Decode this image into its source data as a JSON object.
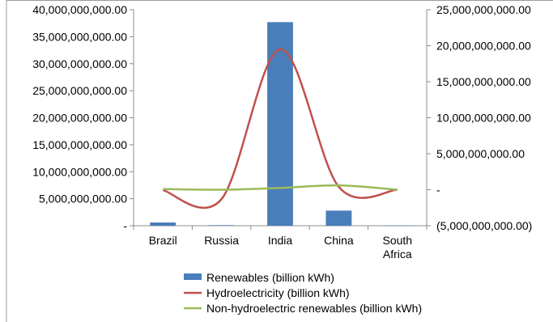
{
  "chart_data": {
    "type": "bar",
    "categories": [
      "Brazil",
      "Russia",
      "India",
      "China",
      "South Africa"
    ],
    "category_label_lines": [
      [
        "Brazil"
      ],
      [
        "Russia"
      ],
      [
        "India"
      ],
      [
        "China"
      ],
      [
        "South",
        "Africa"
      ]
    ],
    "series": [
      {
        "name": "Renewables (billion kWh)",
        "type": "bar",
        "axis": "left",
        "color": "#4a7ebb",
        "values": [
          600000000,
          100000000,
          37700000000,
          2800000000,
          50000000
        ]
      },
      {
        "name": "Hydroelectricity (billion kWh)",
        "type": "line",
        "axis": "right",
        "color": "#c0504d",
        "values": [
          -50000000,
          -1300000000,
          19500000000,
          400000000,
          0
        ]
      },
      {
        "name": "Non-hydroelectric renewables (billion kWh)",
        "type": "line",
        "axis": "right",
        "color": "#9bbb59",
        "values": [
          100000000,
          0,
          250000000,
          600000000,
          0
        ]
      }
    ],
    "left_axis": {
      "ylim": [
        0,
        40000000000
      ],
      "ticks": [
        {
          "value": 40000000000,
          "label": "40,000,000,000.00"
        },
        {
          "value": 35000000000,
          "label": "35,000,000,000.00"
        },
        {
          "value": 30000000000,
          "label": "30,000,000,000.00"
        },
        {
          "value": 25000000000,
          "label": "25,000,000,000.00"
        },
        {
          "value": 20000000000,
          "label": "20,000,000,000.00"
        },
        {
          "value": 15000000000,
          "label": "15,000,000,000.00"
        },
        {
          "value": 10000000000,
          "label": "10,000,000,000.00"
        },
        {
          "value": 5000000000,
          "label": "5,000,000,000.00"
        },
        {
          "value": 0,
          "label": "-"
        }
      ]
    },
    "right_axis": {
      "ylim": [
        -5000000000,
        25000000000
      ],
      "ticks": [
        {
          "value": 25000000000,
          "label": "25,000,000,000.00"
        },
        {
          "value": 20000000000,
          "label": "20,000,000,000.00"
        },
        {
          "value": 15000000000,
          "label": "15,000,000,000.00"
        },
        {
          "value": 10000000000,
          "label": "10,000,000,000.00"
        },
        {
          "value": 5000000000,
          "label": "5,000,000,000.00"
        },
        {
          "value": 0,
          "label": "-"
        },
        {
          "value": -5000000000,
          "label": "(5,000,000,000.00)"
        }
      ]
    },
    "grid": false,
    "legend_position": "bottom"
  }
}
